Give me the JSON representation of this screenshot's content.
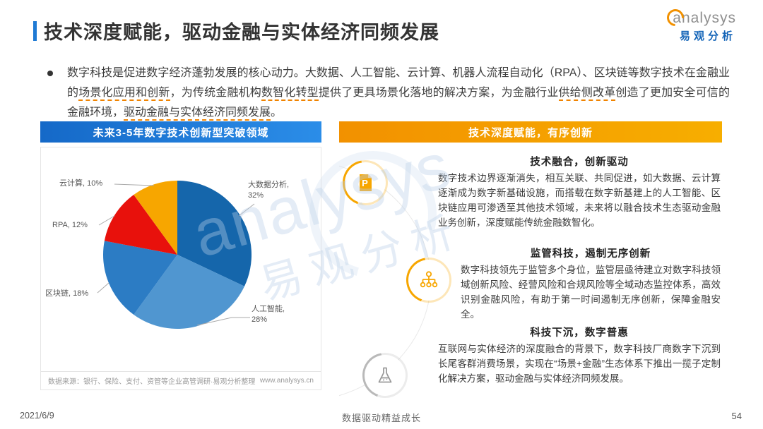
{
  "page": {
    "title": "技术深度赋能，驱动金融与实体经济同频发展",
    "footer": {
      "date": "2021/6/9",
      "slogan": "数据驱动精益成长",
      "page_number": "54"
    }
  },
  "logo": {
    "brand": "analysys",
    "brand_cn": "易观分析"
  },
  "bullet": {
    "segments": [
      {
        "text": "数字科技是促进数字经济蓬勃发展的核心动力。大数据、人工智能、云计算、机器人流程自动化（RPA）、区块链等数字技术在金融业的",
        "em": false
      },
      {
        "text": "场景化应用和创新",
        "em": true
      },
      {
        "text": "，为传统金融机构",
        "em": false
      },
      {
        "text": "数智化转型",
        "em": true
      },
      {
        "text": "提供了更具场景化落地的解决方案，为金融行业",
        "em": false
      },
      {
        "text": "供给侧改革",
        "em": true
      },
      {
        "text": "创造了更加安全可信的金融环境，",
        "em": false
      },
      {
        "text": "驱动金融与实体经济同频发展",
        "em": true
      },
      {
        "text": "。",
        "em": false
      }
    ]
  },
  "left_panel": {
    "header": "未来3-5年数字技术创新型突破领域",
    "source_note": "数据来源：银行、保险、支付、资管等企业高管调研·易观分析整理",
    "source_url": "www.analysys.cn"
  },
  "chart_data": {
    "type": "pie",
    "title": "未来3-5年数字技术创新型突破领域",
    "labels": [
      "大数据分析",
      "人工智能",
      "区块链",
      "RPA",
      "云计算"
    ],
    "values": [
      32,
      28,
      18,
      12,
      10
    ],
    "unit": "%",
    "colors": [
      "#1566ab",
      "#5096d0",
      "#2c7cc4",
      "#e8110c",
      "#f7a600"
    ],
    "start_angle_deg": -90,
    "direction": "clockwise",
    "legend_position": "callout-labels",
    "source": "数据来源：银行、保险、支付、资管等企业高管调研·易观分析整理"
  },
  "right_panel": {
    "header": "技术深度赋能，有序创新",
    "sections": [
      {
        "title": "技术融合，创新驱动",
        "icon": "document-p-icon",
        "body": "数字技术边界逐渐消失，相互关联、共同促进，如大数据、云计算逐渐成为数字新基础设施，而搭载在数字新基建上的人工智能、区块链应用可渗透至其他技术领域，未来将以融合技术生态驱动金融业务创新，深度赋能传统金融数智化。"
      },
      {
        "title": "监管科技，遏制无序创新",
        "icon": "network-icon",
        "body": "数字科技领先于监管多个身位，监管层亟待建立对数字科技领域创新风险、经营风险和合规风险等全域动态监控体系，高效识别金融风险，有助于第一时间遏制无序创新，保障金融安全。"
      },
      {
        "title": "科技下沉，数字普惠",
        "icon": "flask-icon",
        "body": "互联网与实体经济的深度融合的背景下，数字科技厂商数字下沉到长尾客群消费场景，实现在“场景+金融”生态体系下推出一揽子定制化解决方案，驱动金融与实体经济同频发展。"
      }
    ]
  },
  "watermark": {
    "line1": "analysys",
    "line2": "易观分析"
  }
}
